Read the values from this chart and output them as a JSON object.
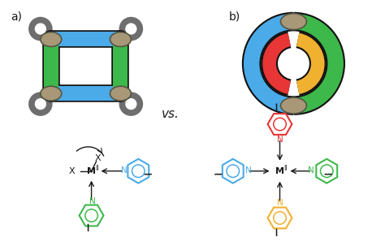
{
  "bg_color": "#ffffff",
  "label_a": "a)",
  "label_b": "b)",
  "vs_text": "vs.",
  "blue_color": "#4baae8",
  "green_color": "#3db84a",
  "red_color": "#e83535",
  "yellow_color": "#f0b030",
  "gray_color": "#6e6e6e",
  "tan_color": "#a89878",
  "black_color": "#1a1a1a"
}
